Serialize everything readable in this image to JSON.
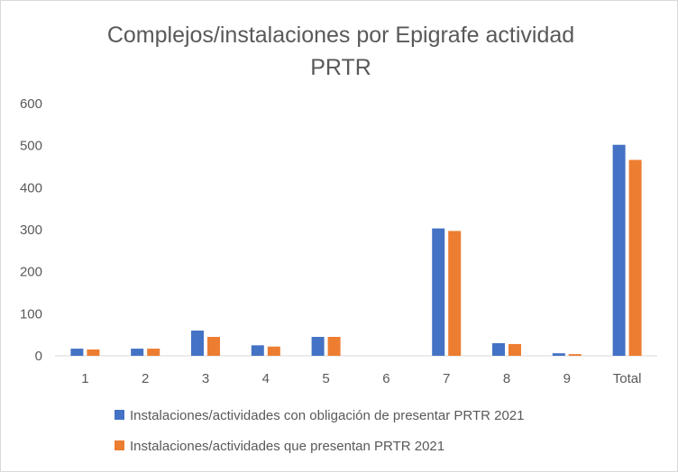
{
  "chart_data": {
    "type": "bar",
    "title_lines": [
      "Complejos/instalaciones  por Epigrafe actividad",
      "PRTR"
    ],
    "categories": [
      "1",
      "2",
      "3",
      "4",
      "5",
      "6",
      "7",
      "8",
      "9",
      "Total"
    ],
    "ylim": [
      0,
      600
    ],
    "yticks": [
      0,
      100,
      200,
      300,
      400,
      500,
      600
    ],
    "grid": false,
    "legend_position": "bottom",
    "series": [
      {
        "name": "Instalaciones/actividades con obligación de presentar PRTR 2021",
        "color": "#4472c4",
        "values": [
          17,
          17,
          60,
          25,
          45,
          0,
          303,
          30,
          6,
          502
        ]
      },
      {
        "name": "Instalaciones/actividades que presentan PRTR 2021",
        "color": "#ed7d31",
        "values": [
          15,
          17,
          45,
          22,
          45,
          0,
          297,
          28,
          4,
          466
        ]
      }
    ]
  }
}
